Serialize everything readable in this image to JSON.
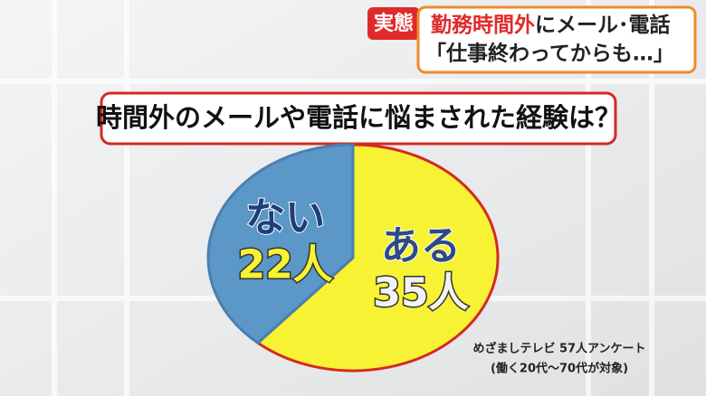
{
  "header": {
    "tag": "実態",
    "headline_red": "勤務時間外",
    "headline_black": "にメール･電話",
    "quote": "「仕事終わってからも…」"
  },
  "chart_data": {
    "type": "pie",
    "title": "時間外のメールや電話に悩まされた経験は？",
    "categories": [
      "ある",
      "ない"
    ],
    "values": [
      35,
      22
    ],
    "value_labels": [
      "35人",
      "22人"
    ],
    "colors": [
      "#f7f234",
      "#5b97c7"
    ]
  },
  "source": {
    "line1": "めざましテレビ 57人アンケート",
    "line2": "(働く20代～70代が対象)"
  }
}
